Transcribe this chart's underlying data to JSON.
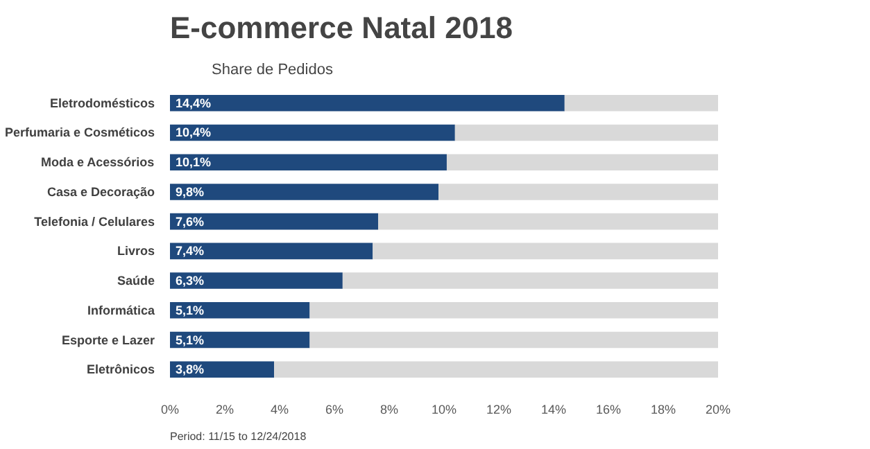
{
  "chart_data": {
    "type": "bar",
    "orientation": "horizontal",
    "stacked": true,
    "title": "E-commerce Natal  2018",
    "subtitle": "Share de Pedidos",
    "categories": [
      "Eletrodomésticos",
      "Perfumaria e Cosméticos",
      "Moda e Acessórios",
      "Casa e Decoração",
      "Telefonia / Celulares",
      "Livros",
      "Saúde",
      "Informática",
      "Esporte e Lazer",
      "Eletrônicos"
    ],
    "series": [
      {
        "color": "#1f497d",
        "values": [
          14.4,
          10.4,
          10.1,
          9.8,
          7.6,
          7.4,
          6.3,
          5.1,
          5.1,
          3.8
        ],
        "value_labels": [
          "14,4%",
          "10,4%",
          "10,1%",
          "9,8%",
          "7,6%",
          "7,4%",
          "6,3%",
          "5,1%",
          "5,1%",
          "3,8%"
        ]
      },
      {
        "color": "#d9d9d9",
        "values": [
          5.6,
          9.6,
          9.9,
          10.2,
          12.4,
          12.6,
          13.7,
          14.9,
          14.9,
          16.2
        ]
      }
    ],
    "xlim": [
      0,
      20
    ],
    "xticks": [
      {
        "value": 0,
        "label": "0%"
      },
      {
        "value": 2,
        "label": "2%"
      },
      {
        "value": 4,
        "label": "4%"
      },
      {
        "value": 6,
        "label": "6%"
      },
      {
        "value": 8,
        "label": "8%"
      },
      {
        "value": 10,
        "label": "10%"
      },
      {
        "value": 12,
        "label": "12%"
      },
      {
        "value": 14,
        "label": "14%"
      },
      {
        "value": 16,
        "label": "16%"
      },
      {
        "value": 18,
        "label": "18%"
      },
      {
        "value": 20,
        "label": "20%"
      }
    ],
    "grid": false,
    "annotations": [
      "Period:  11/15 to 12/24/2018"
    ]
  }
}
